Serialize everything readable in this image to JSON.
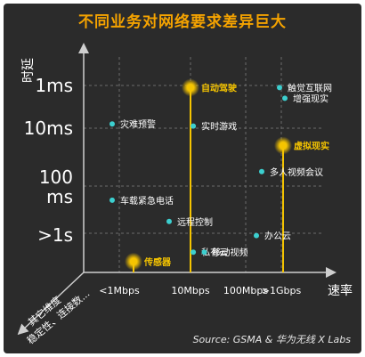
{
  "chart_data": {
    "type": "scatter",
    "title": "不同业务对网络要求差异巨大",
    "xlabel": "速率",
    "ylabel": "时延",
    "x_ticks": [
      "<1Mbps",
      "10Mbps",
      "100Mbps",
      ">1Gbps"
    ],
    "y_ticks": [
      "1ms",
      "10ms",
      "100 ms",
      ">1s"
    ],
    "corner_label": [
      "其它维度",
      "稳定性、连接数..."
    ],
    "points": [
      {
        "label": "自动驾驶",
        "x": 1.0,
        "y": 0.05,
        "highlight": true
      },
      {
        "label": "触觉互联网",
        "x": 2.95,
        "y": 0.05,
        "highlight": false
      },
      {
        "label": "增强现实",
        "x": 3.1,
        "y": 0.3,
        "highlight": false
      },
      {
        "label": "灾难预警",
        "x": -0.1,
        "y": 0.9,
        "highlight": false
      },
      {
        "label": "实时游戏",
        "x": 1.05,
        "y": 0.95,
        "highlight": false
      },
      {
        "label": "虚拟现实",
        "x": 3.05,
        "y": 1.3,
        "highlight": true
      },
      {
        "label": "多人视频会议",
        "x": 2.45,
        "y": 1.75,
        "highlight": false
      },
      {
        "label": "车载紧急电话",
        "x": -0.1,
        "y": 2.3,
        "highlight": false
      },
      {
        "label": "远程控制",
        "x": 0.7,
        "y": 2.75,
        "highlight": false
      },
      {
        "label": "办公云",
        "x": 2.3,
        "y": 3.05,
        "highlight": false
      },
      {
        "label": "私有云",
        "x": 1.05,
        "y": 3.4,
        "highlight": false
      },
      {
        "label": "移动视频",
        "x": 1.25,
        "y": 3.4,
        "highlight": false
      },
      {
        "label": "传感器",
        "x": 0.2,
        "y": 3.6,
        "highlight": true
      }
    ],
    "source": "Source: GSMA & 华为无线 X Labs",
    "colors": {
      "background": "#2b2b2b",
      "accent": "#f5c400",
      "point": "#3ccfcf",
      "grid": "#6b6b6b",
      "text": "#ffffff"
    }
  }
}
